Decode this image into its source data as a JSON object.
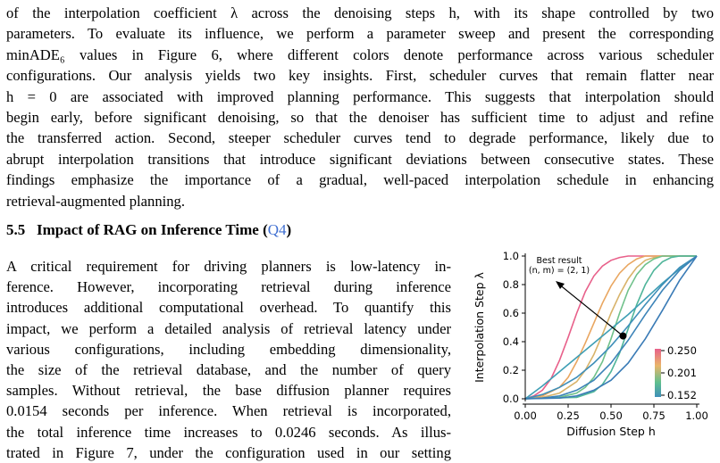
{
  "paragraph1": {
    "lines": [
      "of the interpolation coefficient λ across the denoising steps h, with its shape controlled by two",
      "parameters. To evaluate its influence, we perform a parameter sweep and present the corresponding",
      "minADE₆ values in Figure 6, where different colors denote performance across various scheduler",
      "configurations. Our analysis yields two key insights. First, scheduler curves that remain flatter near",
      "h = 0 are associated with improved planning performance. This suggests that interpolation should",
      "begin early, before significant denoising, so that the denoiser has sufficient time to adjust and refine",
      "the transferred action. Second, steeper scheduler curves tend to degrade performance, likely due to",
      "abrupt interpolation transitions that introduce significant deviations between consecutive states. These",
      "findings emphasize the importance of a gradual, well-paced interpolation schedule in enhancing",
      "retrieval-augmented planning."
    ]
  },
  "section": {
    "number": "5.5",
    "title": "Impact of RAG on Inference Time (",
    "ref": "Q4",
    "close": ")"
  },
  "paragraph2": {
    "lines": [
      "A critical requirement for driving planners is low-latency in-",
      "ference.  However, incorporating retrieval during inference",
      "introduces additional computational overhead. To quantify this",
      "impact, we perform a detailed analysis of retrieval latency under",
      "various configurations, including embedding dimensionality,",
      "the size of the retrieval database, and the number of query",
      "samples. Without retrieval, the base diffusion planner requires",
      "0.0154 seconds per inference. When retrieval is incorporated,",
      "the total inference time increases to 0.0246 seconds. As illus-",
      "trated in Figure 7, under the configuration used in our setting"
    ]
  },
  "chart_data": {
    "type": "line",
    "xlabel": "Diffusion Step h",
    "ylabel": "Interpolation Step λ",
    "xlim": [
      0,
      1
    ],
    "ylim": [
      0,
      1
    ],
    "xticks": [
      "0.00",
      "0.25",
      "0.50",
      "0.75",
      "1.00"
    ],
    "yticks": [
      "0.0",
      "0.2",
      "0.4",
      "0.6",
      "0.8",
      "1.0"
    ],
    "annotation": {
      "line1": "Best result",
      "line2": "(n, m) = (2, 1)",
      "point": [
        0.57,
        0.44
      ]
    },
    "colorbar": {
      "ticks": [
        "0.250",
        "0.201",
        "0.152"
      ],
      "colors": [
        "#e8608a",
        "#e9b56a",
        "#5fbf8f",
        "#3f8fb9"
      ]
    },
    "series": [
      {
        "color": "#e8608a",
        "points": [
          [
            0,
            0
          ],
          [
            0.05,
            0.02
          ],
          [
            0.1,
            0.06
          ],
          [
            0.15,
            0.14
          ],
          [
            0.2,
            0.27
          ],
          [
            0.25,
            0.43
          ],
          [
            0.3,
            0.6
          ],
          [
            0.35,
            0.75
          ],
          [
            0.4,
            0.86
          ],
          [
            0.45,
            0.93
          ],
          [
            0.5,
            0.97
          ],
          [
            0.55,
            0.99
          ],
          [
            0.6,
            1
          ],
          [
            1,
            1
          ]
        ]
      },
      {
        "color": "#e9a660",
        "points": [
          [
            0,
            0
          ],
          [
            0.1,
            0.02
          ],
          [
            0.2,
            0.08
          ],
          [
            0.25,
            0.15
          ],
          [
            0.3,
            0.26
          ],
          [
            0.35,
            0.39
          ],
          [
            0.4,
            0.53
          ],
          [
            0.45,
            0.67
          ],
          [
            0.5,
            0.79
          ],
          [
            0.55,
            0.88
          ],
          [
            0.6,
            0.94
          ],
          [
            0.65,
            0.98
          ],
          [
            0.7,
            1
          ],
          [
            1,
            1
          ]
        ]
      },
      {
        "color": "#d8b36a",
        "points": [
          [
            0,
            0
          ],
          [
            0.1,
            0.01
          ],
          [
            0.2,
            0.04
          ],
          [
            0.3,
            0.12
          ],
          [
            0.35,
            0.2
          ],
          [
            0.4,
            0.31
          ],
          [
            0.45,
            0.45
          ],
          [
            0.5,
            0.6
          ],
          [
            0.55,
            0.73
          ],
          [
            0.6,
            0.84
          ],
          [
            0.65,
            0.92
          ],
          [
            0.7,
            0.97
          ],
          [
            0.75,
            0.99
          ],
          [
            0.8,
            1
          ],
          [
            1,
            1
          ]
        ]
      },
      {
        "color": "#6fc18a",
        "points": [
          [
            0,
            0
          ],
          [
            0.2,
            0.01
          ],
          [
            0.3,
            0.04
          ],
          [
            0.35,
            0.08
          ],
          [
            0.4,
            0.15
          ],
          [
            0.45,
            0.26
          ],
          [
            0.5,
            0.42
          ],
          [
            0.55,
            0.6
          ],
          [
            0.6,
            0.76
          ],
          [
            0.65,
            0.87
          ],
          [
            0.7,
            0.94
          ],
          [
            0.75,
            0.98
          ],
          [
            0.8,
            1
          ],
          [
            1,
            1
          ]
        ]
      },
      {
        "color": "#4fb59a",
        "points": [
          [
            0,
            0
          ],
          [
            0.3,
            0.01
          ],
          [
            0.4,
            0.05
          ],
          [
            0.45,
            0.1
          ],
          [
            0.5,
            0.19
          ],
          [
            0.55,
            0.32
          ],
          [
            0.6,
            0.49
          ],
          [
            0.65,
            0.66
          ],
          [
            0.7,
            0.8
          ],
          [
            0.75,
            0.9
          ],
          [
            0.8,
            0.96
          ],
          [
            0.85,
            0.99
          ],
          [
            0.9,
            1
          ],
          [
            1,
            1
          ]
        ]
      },
      {
        "color": "#3f9fb5",
        "points": [
          [
            0,
            0
          ],
          [
            0.1,
            0.09
          ],
          [
            0.2,
            0.19
          ],
          [
            0.3,
            0.29
          ],
          [
            0.4,
            0.39
          ],
          [
            0.5,
            0.49
          ],
          [
            0.6,
            0.59
          ],
          [
            0.7,
            0.7
          ],
          [
            0.8,
            0.81
          ],
          [
            0.9,
            0.91
          ],
          [
            1,
            1
          ]
        ]
      },
      {
        "color": "#3f8fb9",
        "points": [
          [
            0,
            0
          ],
          [
            0.1,
            0.03
          ],
          [
            0.2,
            0.08
          ],
          [
            0.3,
            0.15
          ],
          [
            0.4,
            0.25
          ],
          [
            0.5,
            0.37
          ],
          [
            0.6,
            0.51
          ],
          [
            0.7,
            0.66
          ],
          [
            0.8,
            0.8
          ],
          [
            0.9,
            0.92
          ],
          [
            1,
            1
          ]
        ]
      },
      {
        "color": "#3d84b8",
        "points": [
          [
            0,
            0
          ],
          [
            0.1,
            0.005
          ],
          [
            0.2,
            0.02
          ],
          [
            0.3,
            0.06
          ],
          [
            0.4,
            0.13
          ],
          [
            0.5,
            0.25
          ],
          [
            0.6,
            0.41
          ],
          [
            0.7,
            0.59
          ],
          [
            0.8,
            0.76
          ],
          [
            0.9,
            0.9
          ],
          [
            1,
            1
          ]
        ]
      },
      {
        "color": "#3a7bb6",
        "points": [
          [
            0,
            0
          ],
          [
            0.2,
            0.005
          ],
          [
            0.3,
            0.02
          ],
          [
            0.4,
            0.06
          ],
          [
            0.5,
            0.13
          ],
          [
            0.6,
            0.25
          ],
          [
            0.7,
            0.42
          ],
          [
            0.8,
            0.62
          ],
          [
            0.9,
            0.83
          ],
          [
            1,
            1
          ]
        ]
      }
    ]
  }
}
